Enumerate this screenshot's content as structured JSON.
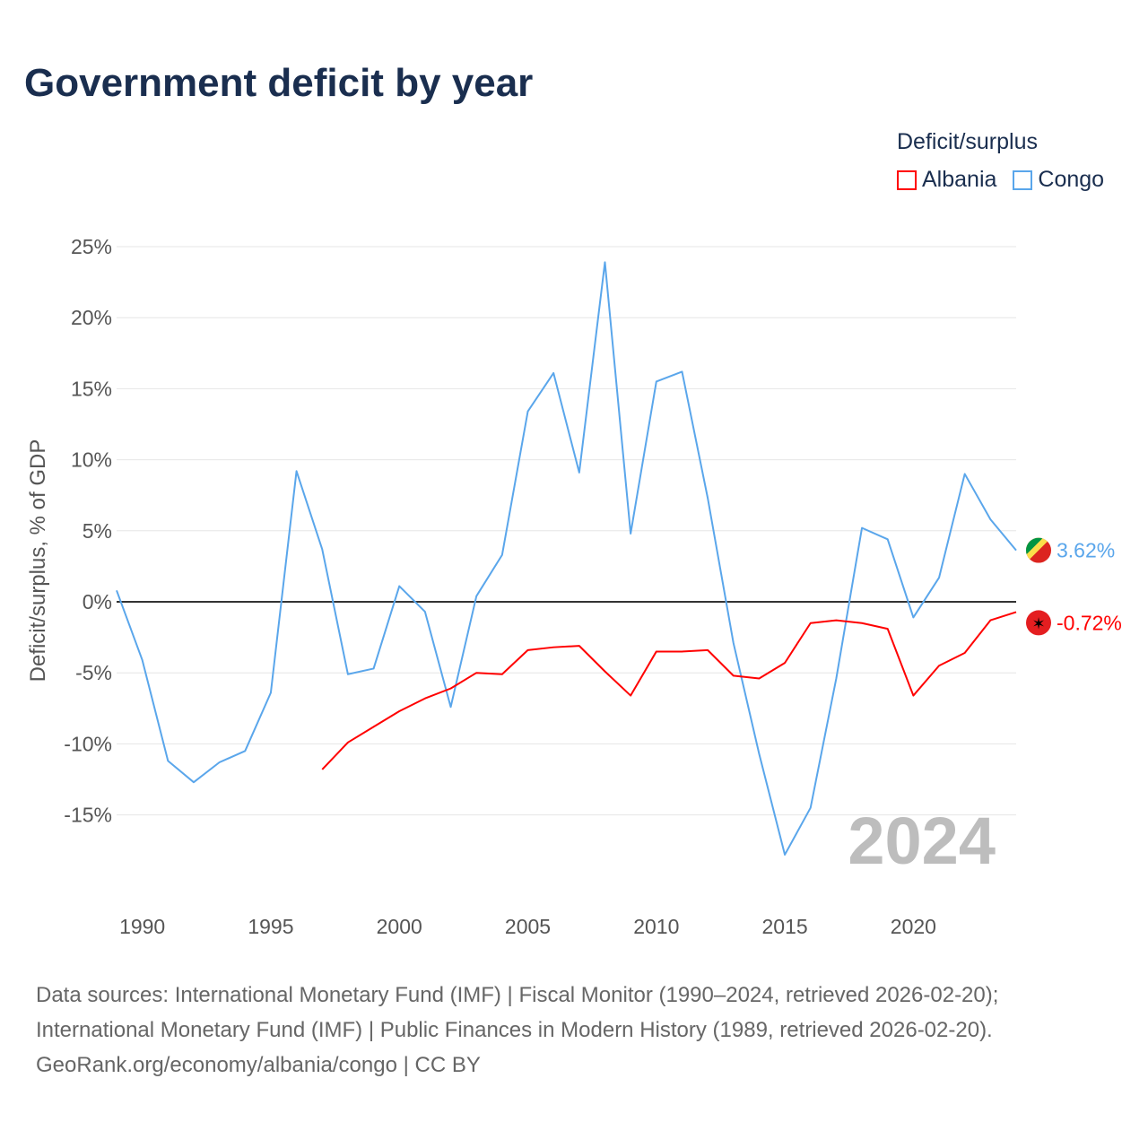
{
  "title": "Government deficit by year",
  "legend": {
    "title": "Deficit/surplus",
    "items": [
      {
        "name": "Albania",
        "color": "#ff0000"
      },
      {
        "name": "Congo",
        "color": "#5aa6eb"
      }
    ]
  },
  "year_watermark": "2024",
  "source": {
    "line1": "Data sources: International Monetary Fund (IMF) | Fiscal Monitor (1990–2024, retrieved 2026-02-20);",
    "line2": "International Monetary Fund (IMF) | Public Finances in Modern History (1989, retrieved 2026-02-20).",
    "line3": "GeoRank.org/economy/albania/congo | CC BY"
  },
  "chart_data": {
    "type": "line",
    "title": "Government deficit by year",
    "xlabel": "",
    "ylabel": "Deficit/surplus, % of GDP",
    "xlim": [
      1989,
      2024
    ],
    "ylim": [
      -20,
      25
    ],
    "xticks": [
      1990,
      1995,
      2000,
      2005,
      2010,
      2015,
      2020
    ],
    "yticks": [
      -15,
      -10,
      -5,
      0,
      5,
      10,
      15,
      20,
      25
    ],
    "ytick_labels": [
      "-15%",
      "-10%",
      "-5%",
      "0%",
      "5%",
      "10%",
      "15%",
      "20%",
      "25%"
    ],
    "grid": true,
    "legend_position": "top-right",
    "series": [
      {
        "name": "Congo",
        "color": "#5aa6eb",
        "end_label": "3.62%",
        "x": [
          1989,
          1990,
          1991,
          1992,
          1993,
          1994,
          1995,
          1996,
          1997,
          1998,
          1999,
          2000,
          2001,
          2002,
          2003,
          2004,
          2005,
          2006,
          2007,
          2008,
          2009,
          2010,
          2011,
          2012,
          2013,
          2014,
          2015,
          2016,
          2017,
          2018,
          2019,
          2020,
          2021,
          2022,
          2023,
          2024
        ],
        "values": [
          0.8,
          -4.1,
          -11.2,
          -12.7,
          -11.3,
          -10.5,
          -6.4,
          9.2,
          3.7,
          -5.1,
          -4.7,
          1.1,
          -0.7,
          -7.4,
          0.4,
          3.3,
          13.4,
          16.1,
          9.1,
          23.9,
          4.8,
          15.5,
          16.2,
          7.3,
          -2.9,
          -10.7,
          -17.8,
          -14.5,
          -5.4,
          5.2,
          4.4,
          -1.1,
          1.7,
          9.0,
          5.8,
          3.62
        ]
      },
      {
        "name": "Albania",
        "color": "#ff0000",
        "end_label": "-0.72%",
        "x": [
          1997,
          1998,
          1999,
          2000,
          2001,
          2002,
          2003,
          2004,
          2005,
          2006,
          2007,
          2008,
          2009,
          2010,
          2011,
          2012,
          2013,
          2014,
          2015,
          2016,
          2017,
          2018,
          2019,
          2020,
          2021,
          2022,
          2023,
          2024
        ],
        "values": [
          -11.8,
          -9.9,
          -8.8,
          -7.7,
          -6.8,
          -6.1,
          -5.0,
          -5.1,
          -3.4,
          -3.2,
          -3.1,
          -4.9,
          -6.6,
          -3.5,
          -3.5,
          -3.4,
          -5.2,
          -5.4,
          -4.3,
          -1.5,
          -1.3,
          -1.5,
          -1.9,
          -6.6,
          -4.5,
          -3.6,
          -1.3,
          -0.72
        ]
      }
    ]
  }
}
